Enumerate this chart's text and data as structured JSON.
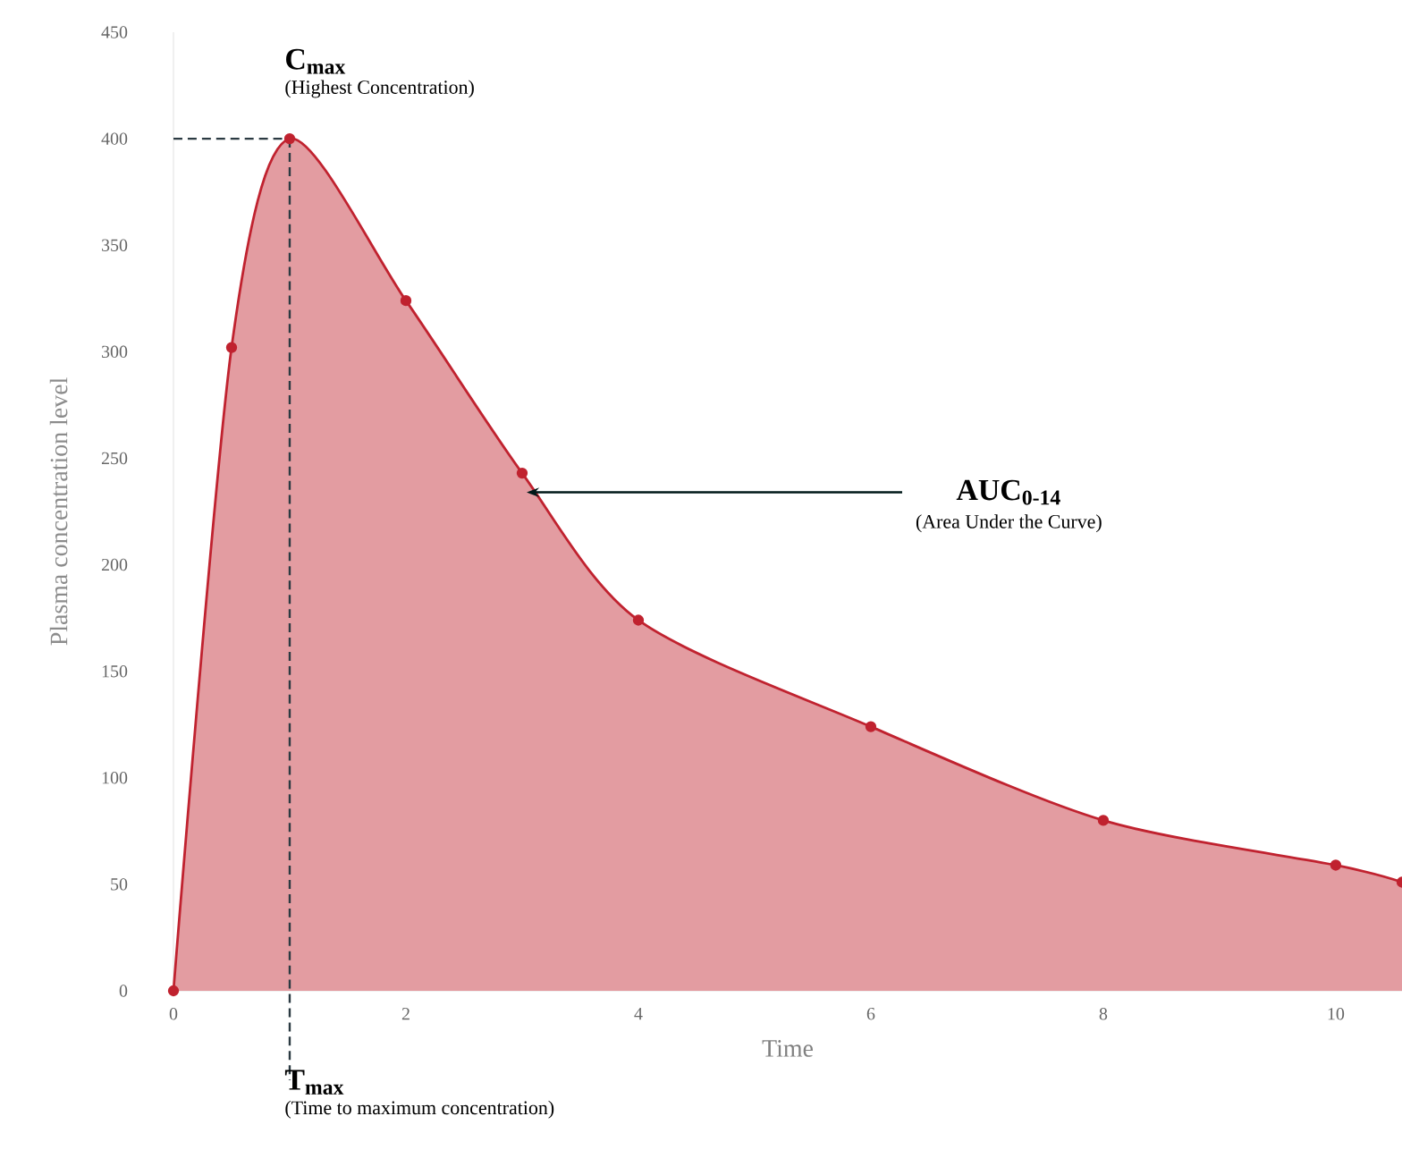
{
  "chart_data": {
    "type": "area",
    "xlabel": "Time",
    "ylabel": "Plasma concentration level",
    "series": [
      {
        "color": "#c0222f",
        "x": [
          0,
          0.5,
          1,
          2,
          3,
          4,
          6,
          8,
          10,
          10.57
        ],
        "values": [
          0,
          302,
          400,
          324,
          243,
          174,
          124,
          80,
          59,
          51
        ]
      }
    ],
    "xlim": [
      0,
      10.57
    ],
    "ylim": [
      0,
      450
    ],
    "xticks": [
      0,
      2,
      4,
      6,
      8,
      10
    ],
    "yticks": [
      0,
      50,
      100,
      150,
      200,
      250,
      300,
      350,
      400,
      450
    ],
    "marker": "circle",
    "grid": false,
    "ref_lines": [
      {
        "axis": "x",
        "value": 1,
        "color": "#2b3a42",
        "line_style": "dashed"
      },
      {
        "axis": "y",
        "value": 400,
        "color": "#2b3a42",
        "line_style": "dashed"
      }
    ],
    "annotations": [
      {
        "text": "C$_{max}$",
        "x": 1,
        "y": 400
      },
      "(Highest Concentration)",
      {
        "text": "T$_{max}$",
        "x": 1,
        "y": 0
      },
      "(Time to maximum concentration)",
      "AUC$_{0-14}$",
      "(Area Under the Curve)"
    ]
  }
}
